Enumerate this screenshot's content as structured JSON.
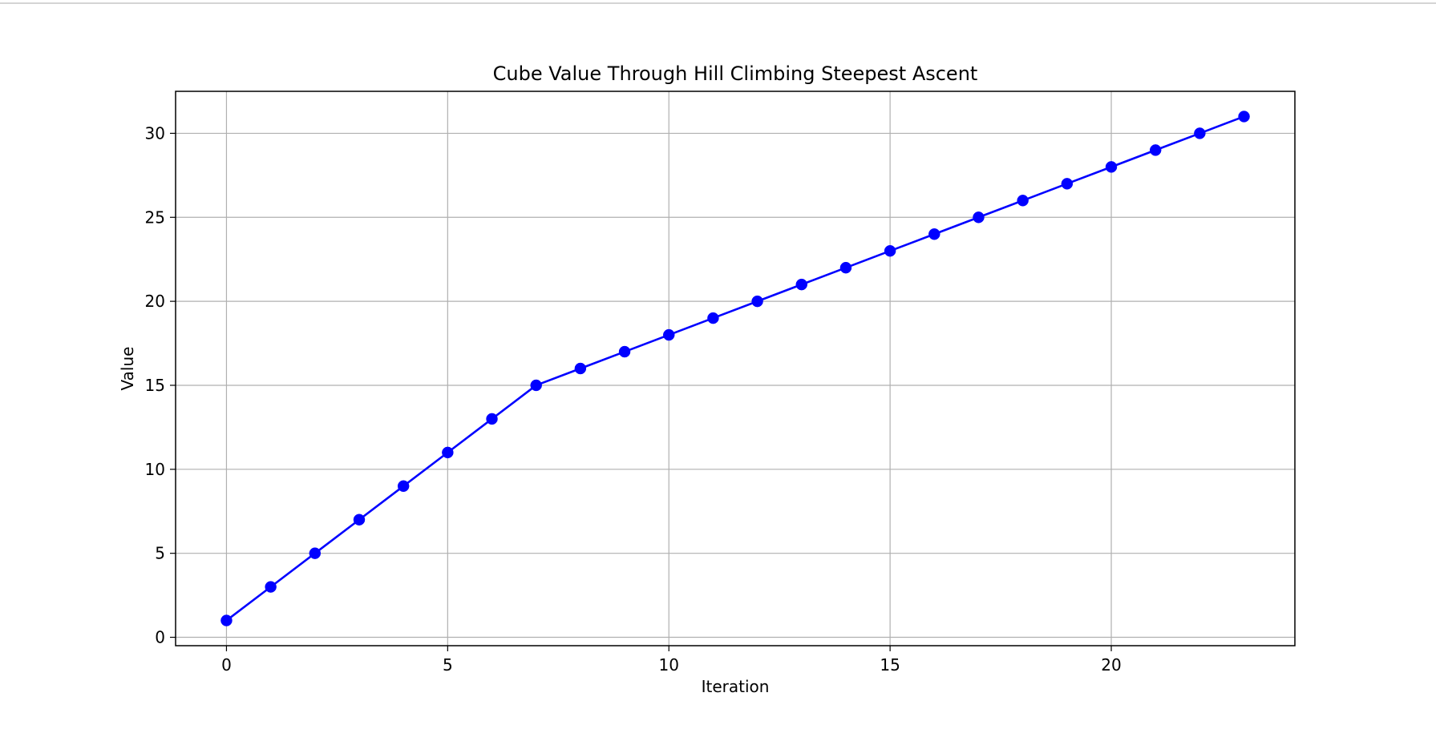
{
  "chart_data": {
    "type": "line",
    "title": "Cube Value Through Hill Climbing Steepest Ascent",
    "xlabel": "Iteration",
    "ylabel": "Value",
    "x": [
      0,
      1,
      2,
      3,
      4,
      5,
      6,
      7,
      8,
      9,
      10,
      11,
      12,
      13,
      14,
      15,
      16,
      17,
      18,
      19,
      20,
      21,
      22,
      23
    ],
    "series": [
      {
        "values": [
          1,
          3,
          5,
          7,
          9,
          11,
          13,
          15,
          16,
          17,
          18,
          19,
          20,
          21,
          22,
          23,
          24,
          25,
          26,
          27,
          28,
          29,
          30,
          31
        ],
        "color": "#0000ff",
        "marker": "circle"
      }
    ],
    "xticks": [
      0,
      5,
      10,
      15,
      20
    ],
    "yticks": [
      0,
      5,
      10,
      15,
      20,
      25,
      30
    ],
    "xlim": [
      -1.15,
      24.15
    ],
    "ylim": [
      -0.5,
      32.5
    ],
    "grid": true,
    "colors": {
      "grid": "#b0b0b0",
      "axes": "#000000",
      "line": "#0000ff"
    }
  }
}
